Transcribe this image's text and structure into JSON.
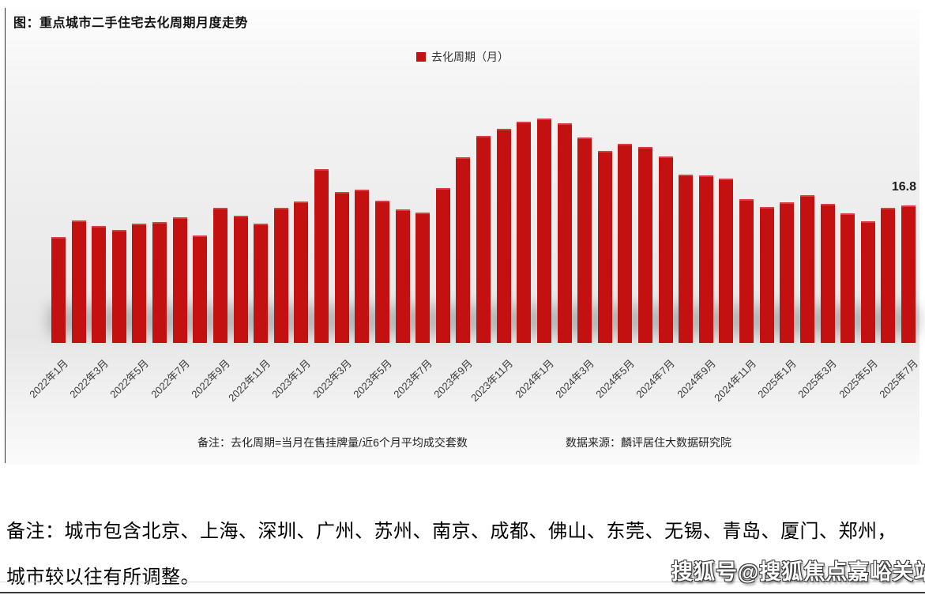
{
  "chart_data": {
    "type": "bar",
    "title": "图：重点城市二手住宅去化周期月度走势",
    "legend_label": "去化周期（月）",
    "legend_position": "top-center",
    "bar_color": "#c31111",
    "grid": false,
    "y_axis": "hidden",
    "ylim": [
      0,
      28
    ],
    "x_tick_every": 2,
    "categories": [
      "2022年1月",
      "2022年2月",
      "2022年3月",
      "2022年4月",
      "2022年5月",
      "2022年6月",
      "2022年7月",
      "2022年8月",
      "2022年9月",
      "2022年10月",
      "2022年11月",
      "2022年12月",
      "2023年1月",
      "2023年2月",
      "2023年3月",
      "2023年4月",
      "2023年5月",
      "2023年6月",
      "2023年7月",
      "2023年8月",
      "2023年9月",
      "2023年10月",
      "2023年11月",
      "2023年12月",
      "2024年1月",
      "2024年2月",
      "2024年3月",
      "2024年4月",
      "2024年5月",
      "2024年6月",
      "2024年7月",
      "2024年8月",
      "2024年9月",
      "2024年10月",
      "2024年11月",
      "2024年12月",
      "2025年1月",
      "2025年2月",
      "2025年3月",
      "2025年4月",
      "2025年5月",
      "2025年6月",
      "2025年7月"
    ],
    "values": [
      12.9,
      15.0,
      14.3,
      13.8,
      14.6,
      14.8,
      15.4,
      13.1,
      16.5,
      15.5,
      14.6,
      16.5,
      17.3,
      21.2,
      18.4,
      18.7,
      17.4,
      16.3,
      15.9,
      18.9,
      22.7,
      25.3,
      26.2,
      27.0,
      27.4,
      26.8,
      25.1,
      23.5,
      24.3,
      23.9,
      22.8,
      20.6,
      20.5,
      20.1,
      17.6,
      16.6,
      17.2,
      18.1,
      17.0,
      15.8,
      14.9,
      16.5,
      16.8
    ],
    "data_label": {
      "category": "2025年7月",
      "value": "16.8"
    },
    "note": "备注：去化周期=当月在售挂牌量/近6个月平均成交套数",
    "source": "数据来源：麟评居住大数据研究院"
  },
  "footer": {
    "note_line1": "备注：城市包含北京、上海、深圳、广州、苏州、南京、成都、佛山、东莞、无锡、青岛、厦门、郑州，",
    "note_line2": "城市较以往有所调整。",
    "watermark": "搜狐号@搜狐焦点嘉峪关站"
  }
}
